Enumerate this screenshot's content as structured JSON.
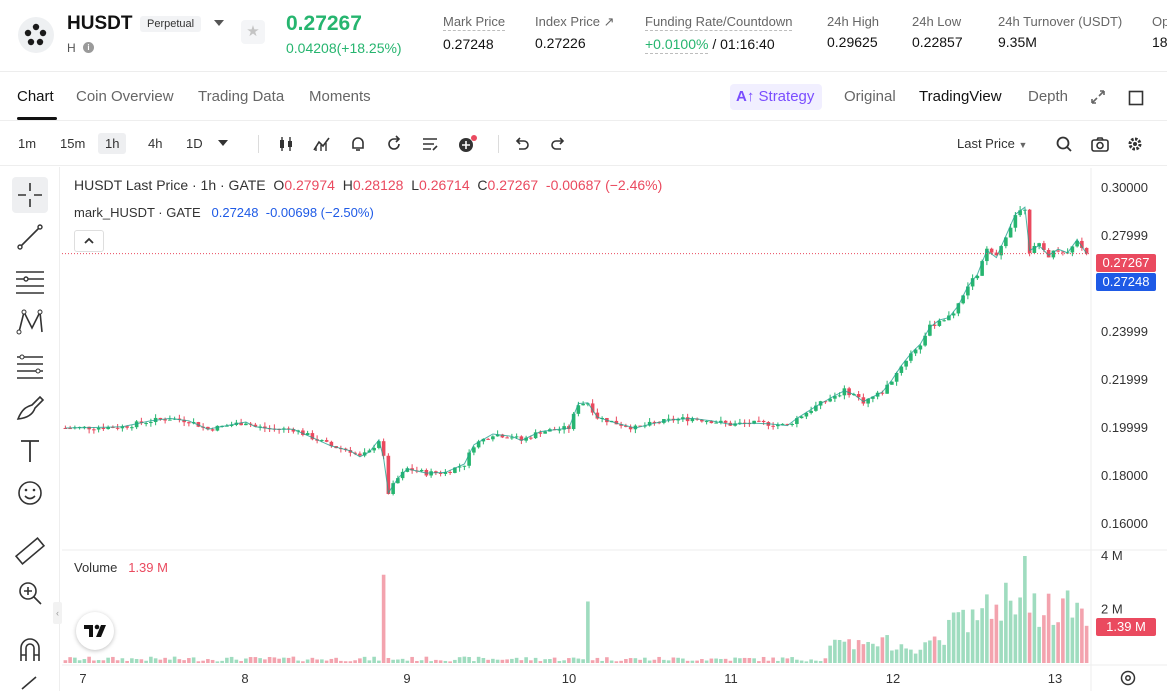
{
  "header": {
    "symbol": "HUSDT",
    "contract_type": "Perpetual",
    "sub_label": "H",
    "last_price": "0.27267",
    "change": "0.04208(+18.25%)",
    "stats": [
      {
        "label": "Mark Price",
        "value": "0.27248"
      },
      {
        "label": "Index Price ↗",
        "value": "0.27226"
      },
      {
        "label": "Funding Rate/Countdown",
        "value_rate": "+0.0100%",
        "value_countdown": " / 01:16:40"
      },
      {
        "label": "24h High",
        "value": "0.29625"
      },
      {
        "label": "24h Low",
        "value": "0.22857"
      },
      {
        "label": "24h Turnover (USDT)",
        "value": "9.35M"
      },
      {
        "label": "Op",
        "value": "18"
      }
    ]
  },
  "tabs": {
    "left": [
      "Chart",
      "Coin Overview",
      "Trading Data",
      "Moments"
    ],
    "strategy": "Strategy",
    "right": [
      "Original",
      "TradingView",
      "Depth"
    ]
  },
  "toolbar": {
    "timeframes": [
      "1m",
      "15m",
      "1h",
      "4h",
      "1D"
    ],
    "selected_timeframe": "1h",
    "price_type": "Last Price"
  },
  "legend": {
    "main_title": "HUSDT Last Price · 1h · GATE",
    "o_label": "O",
    "o_value": "0.27974",
    "h_label": "H",
    "h_value": "0.28128",
    "l_label": "L",
    "l_value": "0.26714",
    "c_label": "C",
    "c_value": "0.27267",
    "change": "-0.00687 (−2.46%)",
    "mark_title": "mark_HUSDT · GATE",
    "mark_value": "0.27248",
    "mark_change": "-0.00698 (−2.50%)",
    "volume_label": "Volume",
    "volume_value": "1.39 M"
  },
  "price_tags": {
    "last": "0.27267",
    "mark": "0.27248",
    "volume": "1.39 M"
  },
  "colors": {
    "up": "#26b56f",
    "down": "#ea4a5f",
    "mark": "#1e5ae6",
    "accent": "#7a4dff"
  },
  "chart_data": {
    "type": "candlestick",
    "interval": "1h",
    "y_ticks": [
      "0.30000",
      "0.27999",
      "0.25999",
      "0.23999",
      "0.21999",
      "0.19999",
      "0.18000",
      "0.16000"
    ],
    "ylim": [
      0.15,
      0.305
    ],
    "volume_ticks": [
      "4 M",
      "2 M"
    ],
    "volume_max": 4.0,
    "x_ticks": [
      "7",
      "8",
      "9",
      "10",
      "11",
      "12",
      "13"
    ],
    "close_path": [
      [
        0,
        0.2
      ],
      [
        6,
        0.2002
      ],
      [
        12,
        0.2005
      ],
      [
        18,
        0.203
      ],
      [
        22,
        0.204
      ],
      [
        26,
        0.203
      ],
      [
        30,
        0.1995
      ],
      [
        34,
        0.201
      ],
      [
        38,
        0.2025
      ],
      [
        40,
        0.2005
      ],
      [
        44,
        0.1995
      ],
      [
        48,
        0.1995
      ],
      [
        52,
        0.196
      ],
      [
        56,
        0.1925
      ],
      [
        60,
        0.1905
      ],
      [
        62,
        0.188
      ],
      [
        64,
        0.19
      ],
      [
        66,
        0.195
      ],
      [
        67,
        0.1875
      ],
      [
        68,
        0.173
      ],
      [
        70,
        0.179
      ],
      [
        72,
        0.183
      ],
      [
        76,
        0.1812
      ],
      [
        80,
        0.1815
      ],
      [
        84,
        0.185
      ],
      [
        86,
        0.193
      ],
      [
        90,
        0.1975
      ],
      [
        94,
        0.1965
      ],
      [
        96,
        0.1948
      ],
      [
        100,
        0.1985
      ],
      [
        104,
        0.1995
      ],
      [
        106,
        0.2
      ],
      [
        108,
        0.2102
      ],
      [
        110,
        0.2105
      ],
      [
        112,
        0.2045
      ],
      [
        116,
        0.202
      ],
      [
        120,
        0.2
      ],
      [
        124,
        0.202
      ],
      [
        128,
        0.2035
      ],
      [
        132,
        0.204
      ],
      [
        136,
        0.203
      ],
      [
        140,
        0.2015
      ],
      [
        144,
        0.202
      ],
      [
        148,
        0.2018
      ],
      [
        152,
        0.201
      ],
      [
        154,
        0.204
      ],
      [
        158,
        0.209
      ],
      [
        162,
        0.2135
      ],
      [
        164,
        0.2155
      ],
      [
        166,
        0.214
      ],
      [
        168,
        0.211
      ],
      [
        170,
        0.213
      ],
      [
        172,
        0.215
      ],
      [
        174,
        0.22
      ],
      [
        176,
        0.226
      ],
      [
        178,
        0.231
      ],
      [
        180,
        0.235
      ],
      [
        182,
        0.242
      ],
      [
        184,
        0.245
      ],
      [
        186,
        0.246
      ],
      [
        188,
        0.251
      ],
      [
        190,
        0.259
      ],
      [
        192,
        0.264
      ],
      [
        194,
        0.274
      ],
      [
        196,
        0.271
      ],
      [
        198,
        0.28
      ],
      [
        200,
        0.289
      ],
      [
        202,
        0.292
      ],
      [
        203,
        0.274
      ],
      [
        205,
        0.276
      ],
      [
        207,
        0.272
      ],
      [
        209,
        0.2745
      ],
      [
        211,
        0.273
      ],
      [
        213,
        0.2785
      ],
      [
        215,
        0.2727
      ]
    ],
    "mark_value": 0.27248,
    "last_value": 0.27267,
    "hours_per_day_tick": 24,
    "volume_spikes": [
      [
        67,
        3.3
      ],
      [
        110,
        2.3
      ],
      [
        188,
        1.9
      ],
      [
        198,
        3.0
      ],
      [
        202,
        4.0
      ]
    ]
  }
}
